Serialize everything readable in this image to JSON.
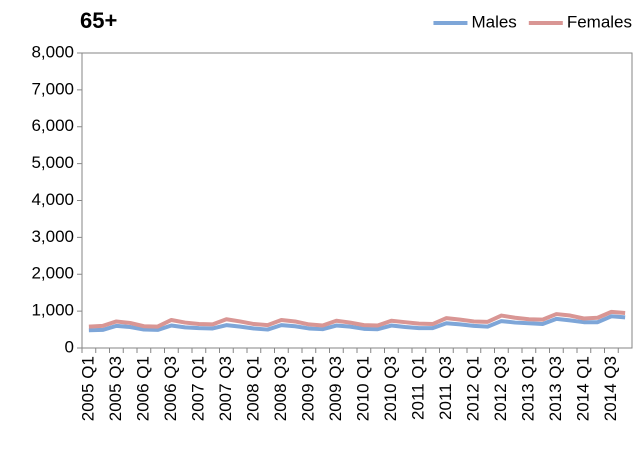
{
  "chart_data": {
    "type": "line",
    "title": "65+",
    "categories": [
      "2005 Q1",
      null,
      "2005 Q3",
      null,
      "2006 Q1",
      null,
      "2006 Q3",
      null,
      "2007 Q1",
      null,
      "2007 Q3",
      null,
      "2008 Q1",
      null,
      "2008 Q3",
      null,
      "2009 Q1",
      null,
      "2009 Q3",
      null,
      "2010 Q1",
      null,
      "2010 Q3",
      null,
      "2011 Q1",
      null,
      "2011 Q3",
      null,
      "2012 Q1",
      null,
      "2012 Q3",
      null,
      "2013 Q1",
      null,
      "2013 Q3",
      null,
      "2014 Q1",
      null,
      "2014 Q3",
      null
    ],
    "series": [
      {
        "name": "Males",
        "color": "#7ea6d8",
        "values": [
          480,
          490,
          600,
          570,
          500,
          490,
          610,
          560,
          540,
          530,
          620,
          580,
          530,
          500,
          620,
          590,
          530,
          510,
          610,
          580,
          520,
          510,
          610,
          570,
          540,
          540,
          670,
          640,
          600,
          580,
          730,
          690,
          670,
          650,
          790,
          750,
          700,
          700,
          860,
          830
        ]
      },
      {
        "name": "Females",
        "color": "#d99694",
        "values": [
          580,
          600,
          720,
          680,
          590,
          580,
          760,
          690,
          650,
          640,
          780,
          720,
          650,
          620,
          760,
          720,
          640,
          610,
          740,
          690,
          620,
          610,
          740,
          700,
          660,
          650,
          810,
          770,
          720,
          710,
          880,
          820,
          780,
          770,
          920,
          880,
          800,
          820,
          980,
          950
        ]
      }
    ],
    "ylim": [
      0,
      8000
    ],
    "yticks": [
      0,
      {
        "value": 1000,
        "label": "1,000"
      },
      {
        "value": 2000,
        "label": "2,000"
      },
      {
        "value": 3000,
        "label": "3,000"
      },
      {
        "value": 4000,
        "label": "4,000"
      },
      {
        "value": 5000,
        "label": "5,000"
      },
      {
        "value": 6000,
        "label": "6,000"
      },
      {
        "value": 7000,
        "label": "7,000"
      },
      {
        "value": 8000,
        "label": "8,000"
      }
    ],
    "grid": false,
    "legend": "top-right"
  }
}
